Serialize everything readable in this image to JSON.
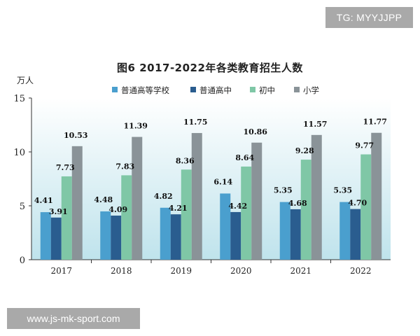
{
  "watermarks": {
    "top": "TG: MYYJJPP",
    "bottom": "www.js-mk-sport.com"
  },
  "chart_data": {
    "type": "bar",
    "title": "图6  2017-2022年各类教育招生人数",
    "ylabel": "万人",
    "ylim": [
      0,
      15
    ],
    "yticks": [
      0,
      5,
      10,
      15
    ],
    "categories": [
      "2017",
      "2018",
      "2019",
      "2020",
      "2021",
      "2022"
    ],
    "legend_position": "top",
    "series": [
      {
        "name": "普通高等学校",
        "color": "#4a9fce",
        "values": [
          4.41,
          4.48,
          4.82,
          6.14,
          5.35,
          5.35
        ]
      },
      {
        "name": "普通高中",
        "color": "#2a5d8f",
        "values": [
          3.91,
          4.09,
          4.21,
          4.42,
          4.68,
          4.7
        ]
      },
      {
        "name": "初中",
        "color": "#7fc7a6",
        "values": [
          7.73,
          7.83,
          8.36,
          8.64,
          9.28,
          9.77
        ]
      },
      {
        "name": "小学",
        "color": "#8a9398",
        "values": [
          10.53,
          11.39,
          11.75,
          10.86,
          11.57,
          11.77
        ]
      }
    ]
  }
}
